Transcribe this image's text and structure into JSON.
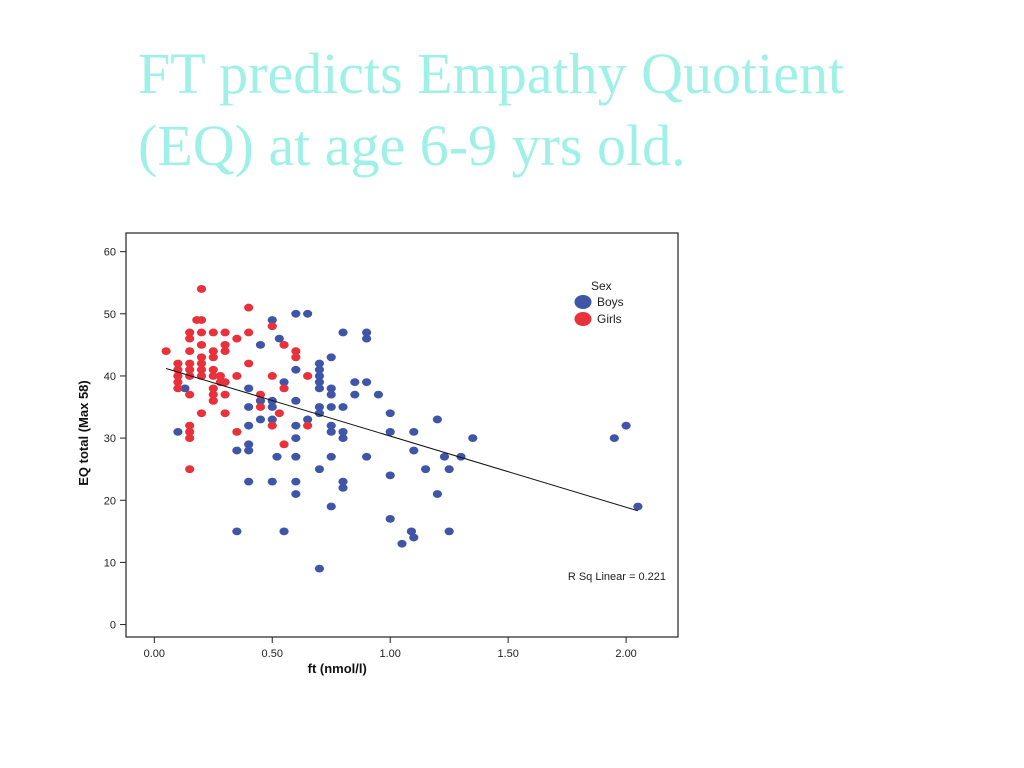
{
  "slide": {
    "title_line1": "FT predicts Empathy Quotient",
    "title_line2": "(EQ) at age 6-9 yrs old.",
    "title_color": "#9ff1e8"
  },
  "chart_data": {
    "type": "scatter",
    "xlabel": "ft (nmol/l)",
    "ylabel": "EQ total (Max 58)",
    "xlim": [
      -0.12,
      2.22
    ],
    "ylim": [
      -2,
      63
    ],
    "xticks": [
      "0.00",
      "0.50",
      "1.00",
      "1.50",
      "2.00"
    ],
    "xtick_values": [
      0,
      0.5,
      1.0,
      1.5,
      2.0
    ],
    "yticks": [
      "0",
      "10",
      "20",
      "30",
      "40",
      "50",
      "60"
    ],
    "ytick_values": [
      0,
      10,
      20,
      30,
      40,
      50,
      60
    ],
    "grid": false,
    "legend": {
      "title": "Sex",
      "placement": "top-right"
    },
    "fit_line": {
      "label": "R Sq Linear = 0.221",
      "x": [
        0.05,
        2.05
      ],
      "y": [
        41.2,
        18.3
      ]
    },
    "series": [
      {
        "name": "Boys",
        "color": "#3f56a8",
        "points": [
          [
            0.1,
            31
          ],
          [
            0.13,
            38
          ],
          [
            0.35,
            15
          ],
          [
            0.35,
            28
          ],
          [
            0.4,
            23
          ],
          [
            0.4,
            28
          ],
          [
            0.4,
            29
          ],
          [
            0.4,
            32
          ],
          [
            0.4,
            35
          ],
          [
            0.4,
            38
          ],
          [
            0.45,
            33
          ],
          [
            0.45,
            36
          ],
          [
            0.45,
            45
          ],
          [
            0.5,
            23
          ],
          [
            0.5,
            33
          ],
          [
            0.5,
            35
          ],
          [
            0.5,
            36
          ],
          [
            0.5,
            49
          ],
          [
            0.52,
            27
          ],
          [
            0.53,
            46
          ],
          [
            0.55,
            15
          ],
          [
            0.55,
            39
          ],
          [
            0.6,
            21
          ],
          [
            0.6,
            23
          ],
          [
            0.6,
            27
          ],
          [
            0.6,
            30
          ],
          [
            0.6,
            32
          ],
          [
            0.6,
            36
          ],
          [
            0.6,
            41
          ],
          [
            0.6,
            50
          ],
          [
            0.65,
            33
          ],
          [
            0.65,
            50
          ],
          [
            0.7,
            9
          ],
          [
            0.7,
            25
          ],
          [
            0.7,
            34
          ],
          [
            0.7,
            35
          ],
          [
            0.7,
            38
          ],
          [
            0.7,
            39
          ],
          [
            0.7,
            40
          ],
          [
            0.7,
            41
          ],
          [
            0.7,
            42
          ],
          [
            0.75,
            19
          ],
          [
            0.75,
            27
          ],
          [
            0.75,
            31
          ],
          [
            0.75,
            32
          ],
          [
            0.75,
            35
          ],
          [
            0.75,
            37
          ],
          [
            0.75,
            38
          ],
          [
            0.75,
            43
          ],
          [
            0.8,
            22
          ],
          [
            0.8,
            23
          ],
          [
            0.8,
            30
          ],
          [
            0.8,
            31
          ],
          [
            0.8,
            35
          ],
          [
            0.8,
            47
          ],
          [
            0.85,
            37
          ],
          [
            0.85,
            39
          ],
          [
            0.9,
            27
          ],
          [
            0.9,
            39
          ],
          [
            0.9,
            46
          ],
          [
            0.9,
            47
          ],
          [
            0.95,
            37
          ],
          [
            1.0,
            17
          ],
          [
            1.0,
            24
          ],
          [
            1.0,
            31
          ],
          [
            1.0,
            34
          ],
          [
            1.05,
            13
          ],
          [
            1.09,
            15
          ],
          [
            1.1,
            14
          ],
          [
            1.1,
            28
          ],
          [
            1.1,
            31
          ],
          [
            1.15,
            25
          ],
          [
            1.2,
            21
          ],
          [
            1.2,
            33
          ],
          [
            1.23,
            27
          ],
          [
            1.25,
            15
          ],
          [
            1.25,
            25
          ],
          [
            1.3,
            27
          ],
          [
            1.35,
            30
          ],
          [
            1.95,
            30
          ],
          [
            2.0,
            32
          ],
          [
            2.05,
            19
          ]
        ]
      },
      {
        "name": "Girls",
        "color": "#e8313a",
        "points": [
          [
            0.05,
            44
          ],
          [
            0.1,
            38
          ],
          [
            0.1,
            39
          ],
          [
            0.1,
            40
          ],
          [
            0.1,
            41
          ],
          [
            0.1,
            42
          ],
          [
            0.15,
            25
          ],
          [
            0.15,
            30
          ],
          [
            0.15,
            31
          ],
          [
            0.15,
            32
          ],
          [
            0.15,
            37
          ],
          [
            0.15,
            40
          ],
          [
            0.15,
            41
          ],
          [
            0.15,
            42
          ],
          [
            0.15,
            44
          ],
          [
            0.15,
            46
          ],
          [
            0.15,
            47
          ],
          [
            0.18,
            49
          ],
          [
            0.2,
            34
          ],
          [
            0.2,
            40
          ],
          [
            0.2,
            41
          ],
          [
            0.2,
            42
          ],
          [
            0.2,
            43
          ],
          [
            0.2,
            45
          ],
          [
            0.2,
            47
          ],
          [
            0.2,
            49
          ],
          [
            0.2,
            54
          ],
          [
            0.25,
            36
          ],
          [
            0.25,
            37
          ],
          [
            0.25,
            38
          ],
          [
            0.25,
            40
          ],
          [
            0.25,
            41
          ],
          [
            0.25,
            43
          ],
          [
            0.25,
            44
          ],
          [
            0.25,
            47
          ],
          [
            0.28,
            39
          ],
          [
            0.28,
            40
          ],
          [
            0.3,
            34
          ],
          [
            0.3,
            37
          ],
          [
            0.3,
            39
          ],
          [
            0.3,
            44
          ],
          [
            0.3,
            45
          ],
          [
            0.3,
            47
          ],
          [
            0.35,
            31
          ],
          [
            0.35,
            40
          ],
          [
            0.35,
            46
          ],
          [
            0.4,
            42
          ],
          [
            0.4,
            47
          ],
          [
            0.4,
            51
          ],
          [
            0.45,
            35
          ],
          [
            0.45,
            37
          ],
          [
            0.5,
            32
          ],
          [
            0.5,
            40
          ],
          [
            0.5,
            48
          ],
          [
            0.53,
            34
          ],
          [
            0.55,
            29
          ],
          [
            0.55,
            38
          ],
          [
            0.55,
            45
          ],
          [
            0.6,
            43
          ],
          [
            0.6,
            44
          ],
          [
            0.65,
            32
          ],
          [
            0.65,
            40
          ]
        ]
      }
    ]
  }
}
